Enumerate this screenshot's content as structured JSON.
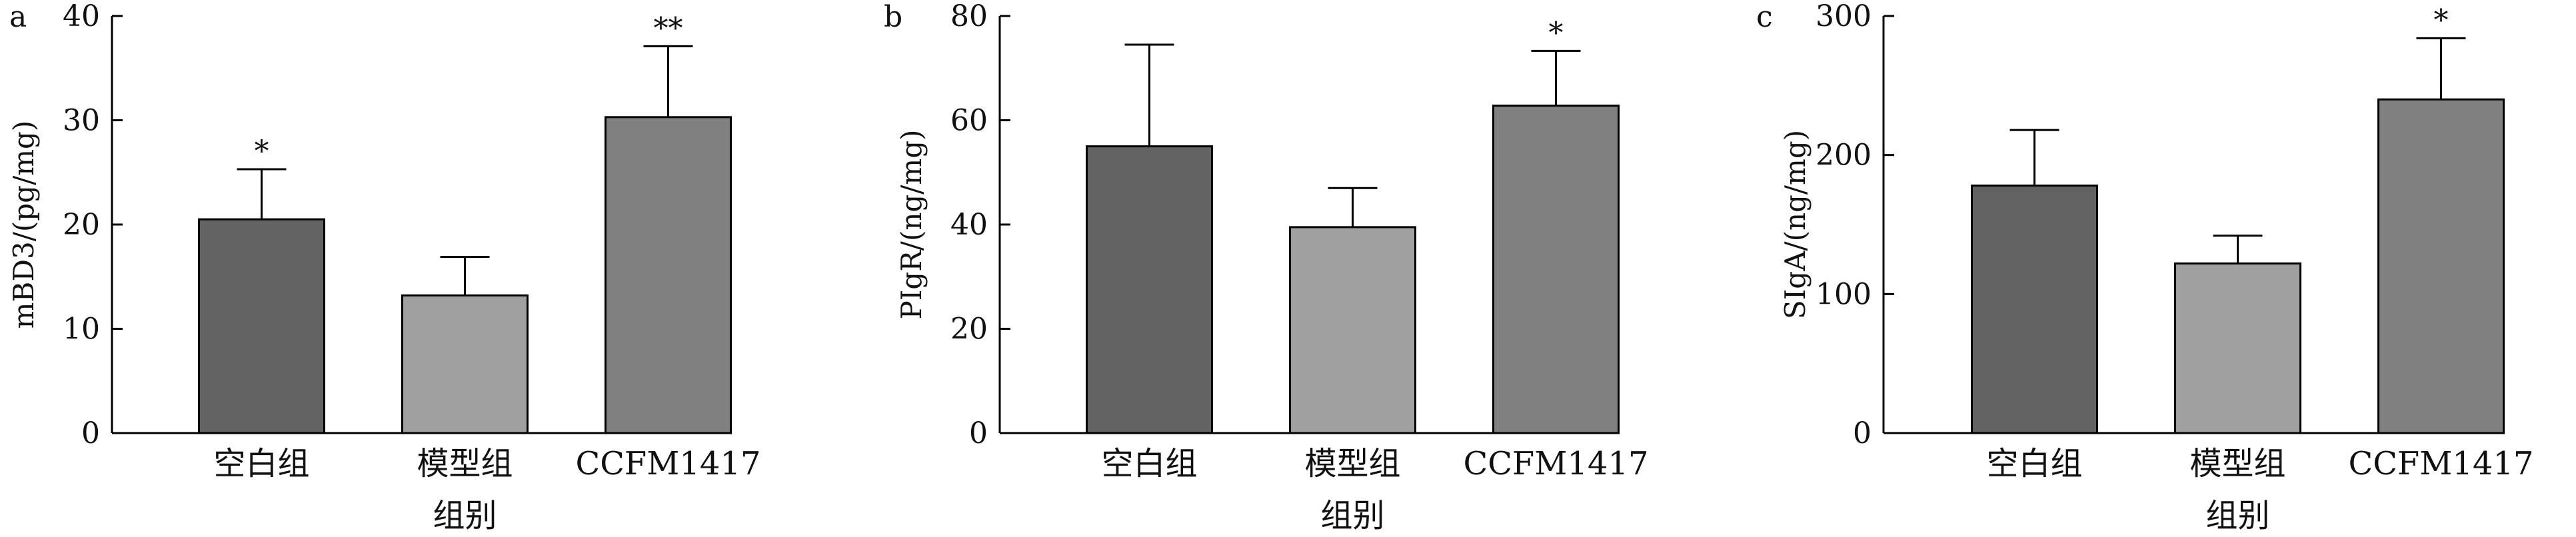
{
  "chart_data": [
    {
      "type": "bar",
      "panel_label": "a",
      "title": "",
      "xlabel": "组别",
      "ylabel": "mBD3/(pg/mg)",
      "categories": [
        "空白组",
        "模型组",
        "CCFM1417"
      ],
      "values": [
        20.5,
        13.2,
        30.3
      ],
      "errors": [
        4.8,
        3.7,
        6.8
      ],
      "significance": [
        "*",
        "",
        "**"
      ],
      "ylim": [
        0,
        40
      ],
      "yticks": [
        0,
        10,
        20,
        30,
        40
      ],
      "grid": false,
      "legend": "none"
    },
    {
      "type": "bar",
      "panel_label": "b",
      "title": "",
      "xlabel": "组别",
      "ylabel": "PIgR/(ng/mg)",
      "categories": [
        "空白组",
        "模型组",
        "CCFM1417"
      ],
      "values": [
        55,
        39.5,
        62.8
      ],
      "errors": [
        19.5,
        7.5,
        10.5
      ],
      "significance": [
        "",
        "",
        "*"
      ],
      "ylim": [
        0,
        80
      ],
      "yticks": [
        0,
        20,
        40,
        60,
        80
      ],
      "grid": false,
      "legend": "none"
    },
    {
      "type": "bar",
      "panel_label": "c",
      "title": "",
      "xlabel": "组别",
      "ylabel": "SIgA/(ng/mg)",
      "categories": [
        "空白组",
        "模型组",
        "CCFM1417"
      ],
      "values": [
        178,
        122,
        240
      ],
      "errors": [
        40,
        20,
        44
      ],
      "significance": [
        "",
        "",
        "*"
      ],
      "ylim": [
        0,
        300
      ],
      "yticks": [
        0,
        100,
        200,
        300
      ],
      "grid": false,
      "legend": "none"
    }
  ],
  "colors": {
    "bar_fills": [
      "#636363",
      "#a0a0a0",
      "#808080"
    ],
    "outline": "#000000"
  }
}
